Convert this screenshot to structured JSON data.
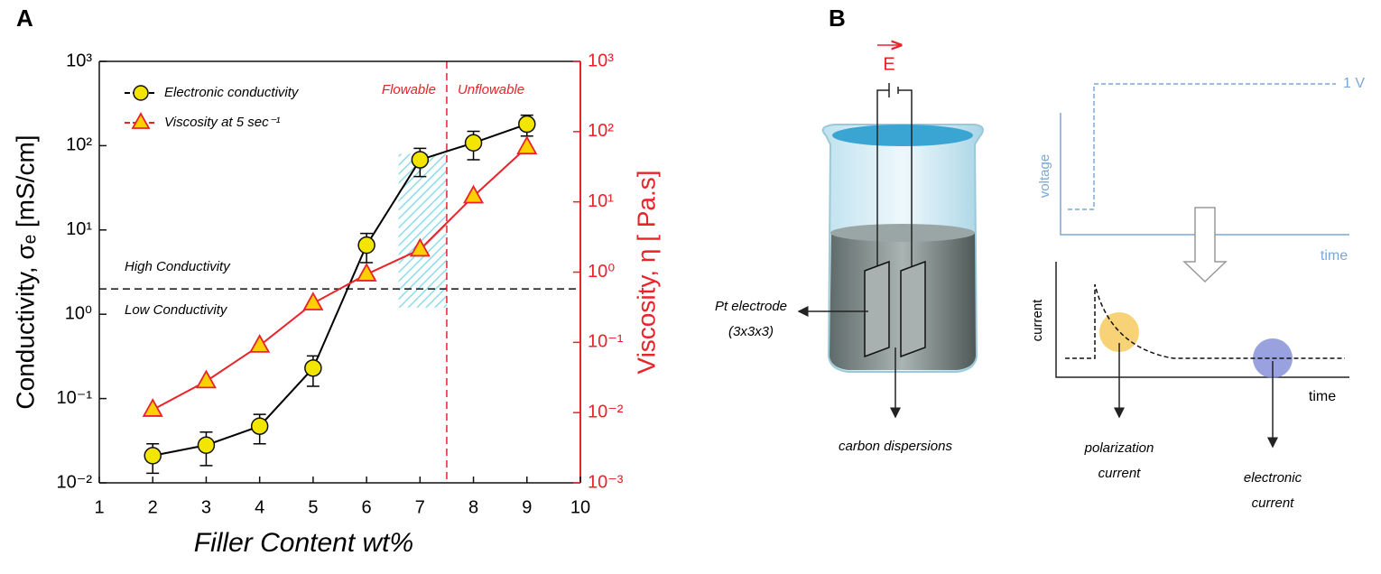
{
  "chart_data": {
    "type": "line",
    "panel": "A",
    "xlabel": "Filler Content wt%",
    "ylabel": "Conductivity, σₑ [mS/cm]",
    "y2label": "Viscosity, η [ Pa.s]",
    "x": [
      2,
      3,
      4,
      5,
      6,
      7,
      8,
      9
    ],
    "series": [
      {
        "name": "Electronic conductivity",
        "color": "#000000",
        "marker_color": "#f2e600",
        "marker": "circle",
        "values": [
          0.021,
          0.028,
          0.047,
          0.23,
          6.6,
          68,
          108,
          180
        ],
        "errors": [
          0.008,
          0.012,
          0.018,
          0.09,
          2.5,
          25,
          40,
          50
        ]
      },
      {
        "name": "Viscosity at 5 sec⁻¹",
        "color": "#e8232a",
        "marker_color": "#ffd000",
        "marker": "triangle",
        "axis": "y2",
        "values": [
          0.011,
          0.028,
          0.09,
          0.36,
          0.93,
          2.1,
          12,
          60
        ]
      }
    ],
    "log_y": true,
    "xlim": [
      1,
      10
    ],
    "xticks": [
      1,
      2,
      3,
      4,
      5,
      6,
      7,
      8,
      9,
      10
    ],
    "ylim": [
      0.01,
      1000
    ],
    "yticks": [
      {
        "value": 0.01,
        "label": "10⁻²"
      },
      {
        "value": 0.1,
        "label": "10⁻¹"
      },
      {
        "value": 1,
        "label": "10⁰"
      },
      {
        "value": 10,
        "label": "10¹"
      },
      {
        "value": 100,
        "label": "10²"
      },
      {
        "value": 1000,
        "label": "10³"
      }
    ],
    "y2lim": [
      0.001,
      1000
    ],
    "y2ticks": [
      {
        "value": 0.001,
        "label": "10⁻³"
      },
      {
        "value": 0.01,
        "label": "10⁻²"
      },
      {
        "value": 0.1,
        "label": "10⁻¹"
      },
      {
        "value": 1,
        "label": "10⁰"
      },
      {
        "value": 10,
        "label": "10¹"
      },
      {
        "value": 100,
        "label": "10²"
      },
      {
        "value": 1000,
        "label": "10³"
      }
    ],
    "y2_color": "#e8232a",
    "hline": {
      "value": 2,
      "above": "High Conductivity",
      "below": "Low Conductivity"
    },
    "vline": {
      "value": 7.5,
      "left": "Flowable",
      "right": "Unflowable"
    },
    "highlight": {
      "x": [
        6.6,
        7.5
      ],
      "y": [
        1.2,
        80
      ]
    },
    "legend": "upper left"
  },
  "diagram": {
    "panel": "B",
    "field": "E",
    "electrode": [
      "Pt electrode",
      "(3x3x3)"
    ],
    "dispersion": "carbon dispersions",
    "voltage_plot": {
      "ylabel": "voltage",
      "level": "1 V",
      "xlabel": "time"
    },
    "current_plot": {
      "ylabel": "current",
      "xlabel": "time",
      "polarization": [
        "polarization",
        "current"
      ],
      "electronic": [
        "electronic",
        "current"
      ]
    }
  }
}
